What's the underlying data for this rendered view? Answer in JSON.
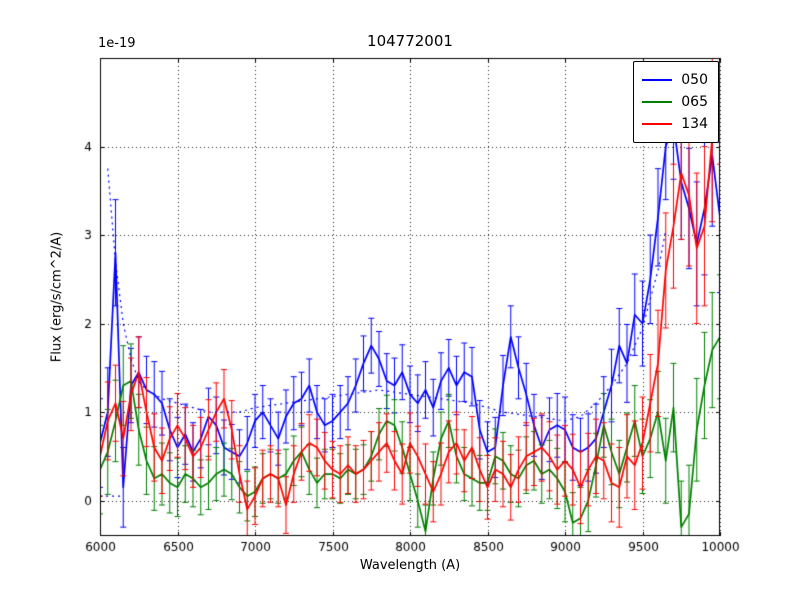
{
  "figure": {
    "title": "104772001",
    "xlabel": "Wavelength (A)",
    "ylabel": "Flux (erg/s/cm^2/A)",
    "offset_text": "1e-19",
    "background_color": "#ffffff"
  },
  "legend": {
    "items": [
      {
        "label": "050",
        "color": "#0000ff"
      },
      {
        "label": "065",
        "color": "#008000"
      },
      {
        "label": "134",
        "color": "#ff0000"
      }
    ]
  },
  "chart_data": {
    "type": "line",
    "title": "104772001",
    "xlabel": "Wavelength (A)",
    "ylabel": "Flux (erg/s/cm^2/A)",
    "y_scale_label": "1e-19",
    "xlim": [
      6000,
      10000
    ],
    "ylim": [
      -0.4,
      5.0
    ],
    "xticks": [
      6000,
      6500,
      7000,
      7500,
      8000,
      8500,
      9000,
      9500,
      10000
    ],
    "yticks": [
      0,
      1,
      2,
      3,
      4
    ],
    "grid": true,
    "grid_style": "dotted",
    "legend_position": "upper right",
    "x": [
      6000,
      6050,
      6100,
      6150,
      6200,
      6250,
      6300,
      6350,
      6400,
      6450,
      6500,
      6550,
      6600,
      6650,
      6700,
      6750,
      6800,
      6850,
      6900,
      6950,
      7000,
      7050,
      7100,
      7150,
      7200,
      7250,
      7300,
      7350,
      7400,
      7450,
      7500,
      7550,
      7600,
      7650,
      7700,
      7750,
      7800,
      7850,
      7900,
      7950,
      8000,
      8050,
      8100,
      8150,
      8200,
      8250,
      8300,
      8350,
      8400,
      8450,
      8500,
      8550,
      8600,
      8650,
      8700,
      8750,
      8800,
      8850,
      8900,
      8950,
      9000,
      9050,
      9100,
      9150,
      9200,
      9250,
      9300,
      9350,
      9400,
      9450,
      9500,
      9550,
      9600,
      9650,
      9700,
      9750,
      9800,
      9850,
      9900,
      9950,
      10000
    ],
    "series": [
      {
        "name": "050",
        "color": "#0000ff",
        "style": "solid",
        "values": [
          0.65,
          1.0,
          2.8,
          0.15,
          1.3,
          1.45,
          1.25,
          1.2,
          1.1,
          0.8,
          0.6,
          0.75,
          0.55,
          0.7,
          0.95,
          0.85,
          0.6,
          0.55,
          0.5,
          0.65,
          0.9,
          1.0,
          0.85,
          0.7,
          0.95,
          1.1,
          1.15,
          1.3,
          1.0,
          0.85,
          0.9,
          1.0,
          1.1,
          1.3,
          1.55,
          1.75,
          1.6,
          1.35,
          1.3,
          1.45,
          1.2,
          1.1,
          1.25,
          1.05,
          1.35,
          1.5,
          1.3,
          1.45,
          1.4,
          0.8,
          0.55,
          0.6,
          1.3,
          1.85,
          1.5,
          1.2,
          0.85,
          0.6,
          0.8,
          0.85,
          0.8,
          0.6,
          0.55,
          0.6,
          0.7,
          1.0,
          1.3,
          1.75,
          1.55,
          2.1,
          2.0,
          2.5,
          3.2,
          4.0,
          4.25,
          3.6,
          3.3,
          2.9,
          3.3,
          3.9,
          3.2
        ],
        "errors": [
          0.5,
          0.5,
          0.6,
          0.45,
          0.42,
          0.4,
          0.38,
          0.37,
          0.36,
          0.35,
          0.34,
          0.34,
          0.33,
          0.33,
          0.32,
          0.32,
          0.31,
          0.31,
          0.3,
          0.3,
          0.3,
          0.3,
          0.3,
          0.3,
          0.3,
          0.3,
          0.3,
          0.3,
          0.3,
          0.3,
          0.3,
          0.3,
          0.3,
          0.3,
          0.31,
          0.31,
          0.31,
          0.31,
          0.31,
          0.31,
          0.32,
          0.32,
          0.32,
          0.32,
          0.32,
          0.32,
          0.33,
          0.33,
          0.33,
          0.33,
          0.34,
          0.34,
          0.34,
          0.35,
          0.35,
          0.35,
          0.35,
          0.36,
          0.36,
          0.36,
          0.37,
          0.37,
          0.38,
          0.38,
          0.39,
          0.4,
          0.41,
          0.42,
          0.44,
          0.46,
          0.48,
          0.5,
          0.55,
          0.6,
          0.62,
          0.65,
          0.68,
          0.7,
          0.75,
          0.8,
          0.85
        ]
      },
      {
        "name": "065",
        "color": "#008000",
        "style": "solid",
        "values": [
          0.35,
          0.55,
          0.9,
          1.3,
          1.35,
          0.8,
          0.45,
          0.25,
          0.3,
          0.2,
          0.15,
          0.3,
          0.25,
          0.15,
          0.2,
          0.3,
          0.35,
          0.3,
          0.15,
          0.05,
          0.1,
          0.25,
          0.3,
          0.25,
          0.3,
          0.45,
          0.55,
          0.35,
          0.2,
          0.3,
          0.3,
          0.25,
          0.35,
          0.3,
          0.35,
          0.5,
          0.75,
          0.9,
          0.85,
          0.6,
          0.3,
          0.0,
          -0.35,
          0.25,
          0.7,
          0.9,
          0.5,
          0.3,
          0.25,
          0.2,
          0.2,
          0.5,
          0.45,
          0.3,
          0.25,
          0.4,
          0.45,
          0.3,
          0.35,
          0.25,
          0.1,
          -0.25,
          -0.2,
          0.0,
          0.4,
          0.85,
          0.55,
          0.3,
          0.6,
          0.9,
          0.5,
          0.7,
          1.0,
          0.45,
          1.05,
          -0.3,
          -0.15,
          0.8,
          1.3,
          1.7,
          1.85
        ],
        "errors": [
          0.5,
          0.48,
          0.46,
          0.45,
          0.42,
          0.4,
          0.38,
          0.36,
          0.35,
          0.34,
          0.33,
          0.32,
          0.32,
          0.31,
          0.3,
          0.3,
          0.3,
          0.29,
          0.29,
          0.28,
          0.28,
          0.28,
          0.28,
          0.28,
          0.28,
          0.28,
          0.28,
          0.28,
          0.28,
          0.28,
          0.28,
          0.28,
          0.28,
          0.28,
          0.28,
          0.28,
          0.29,
          0.29,
          0.29,
          0.29,
          0.3,
          0.3,
          0.3,
          0.3,
          0.3,
          0.3,
          0.3,
          0.3,
          0.31,
          0.31,
          0.31,
          0.31,
          0.32,
          0.32,
          0.32,
          0.32,
          0.33,
          0.33,
          0.33,
          0.34,
          0.34,
          0.34,
          0.35,
          0.35,
          0.36,
          0.36,
          0.37,
          0.38,
          0.39,
          0.4,
          0.42,
          0.44,
          0.46,
          0.48,
          0.5,
          0.52,
          0.55,
          0.58,
          0.6,
          0.65,
          0.7
        ]
      },
      {
        "name": "134",
        "color": "#ff0000",
        "style": "solid",
        "values": [
          0.5,
          0.9,
          1.1,
          0.7,
          1.2,
          1.45,
          1.0,
          0.6,
          0.45,
          0.7,
          0.85,
          0.7,
          0.5,
          0.6,
          0.8,
          1.0,
          1.15,
          0.8,
          0.3,
          -0.1,
          0.05,
          0.25,
          0.3,
          0.25,
          -0.05,
          0.3,
          0.55,
          0.65,
          0.6,
          0.45,
          0.35,
          0.3,
          0.4,
          0.3,
          0.35,
          0.45,
          0.55,
          0.65,
          0.45,
          0.3,
          0.65,
          0.5,
          0.3,
          0.1,
          0.3,
          0.55,
          0.65,
          0.45,
          0.6,
          0.35,
          0.15,
          0.35,
          0.3,
          0.15,
          0.35,
          0.5,
          0.55,
          0.6,
          0.5,
          0.35,
          0.45,
          0.35,
          0.15,
          0.35,
          0.5,
          0.45,
          0.2,
          0.15,
          0.5,
          0.4,
          0.65,
          1.1,
          1.55,
          2.6,
          3.1,
          3.7,
          3.45,
          2.85,
          3.1,
          4.1,
          4.8
        ],
        "errors": [
          0.45,
          0.44,
          0.43,
          0.42,
          0.41,
          0.4,
          0.39,
          0.38,
          0.37,
          0.36,
          0.36,
          0.35,
          0.35,
          0.34,
          0.34,
          0.33,
          0.33,
          0.33,
          0.32,
          0.32,
          0.32,
          0.32,
          0.32,
          0.32,
          0.32,
          0.32,
          0.32,
          0.32,
          0.32,
          0.32,
          0.32,
          0.32,
          0.32,
          0.32,
          0.33,
          0.33,
          0.33,
          0.33,
          0.33,
          0.34,
          0.34,
          0.34,
          0.34,
          0.34,
          0.35,
          0.35,
          0.35,
          0.35,
          0.35,
          0.36,
          0.36,
          0.36,
          0.37,
          0.37,
          0.37,
          0.38,
          0.38,
          0.38,
          0.39,
          0.39,
          0.4,
          0.4,
          0.41,
          0.41,
          0.42,
          0.43,
          0.44,
          0.45,
          0.47,
          0.5,
          0.52,
          0.55,
          0.6,
          0.65,
          0.7,
          0.75,
          0.8,
          0.85,
          0.9,
          0.95,
          1.0
        ]
      }
    ],
    "overlays": [
      {
        "name": "050-model-dotted",
        "color": "#0000ff",
        "style": "dotted",
        "x": [
          6050,
          6100,
          6150,
          6200,
          6250,
          6300,
          6400,
          6500,
          6600,
          6700,
          6800,
          6900,
          7000,
          7200,
          7400,
          7600,
          7800,
          8000,
          8200,
          8400,
          8600,
          8800,
          9000,
          9100,
          9200,
          9300,
          9400,
          9500,
          9600,
          9650
        ],
        "y": [
          3.75,
          2.7,
          2.0,
          1.6,
          1.35,
          1.25,
          1.15,
          1.1,
          1.05,
          1.0,
          1.0,
          1.0,
          1.05,
          1.1,
          1.15,
          1.2,
          1.25,
          1.2,
          1.15,
          1.1,
          1.0,
          0.95,
          0.9,
          0.95,
          1.1,
          1.3,
          1.55,
          1.95,
          2.6,
          3.05
        ]
      },
      {
        "name": "050-model-floor-dotted",
        "color": "#0000ff",
        "style": "dotted",
        "x": [
          6000,
          6050,
          6100,
          6150
        ],
        "y": [
          0.05,
          0.05,
          0.05,
          0.05
        ]
      }
    ]
  }
}
